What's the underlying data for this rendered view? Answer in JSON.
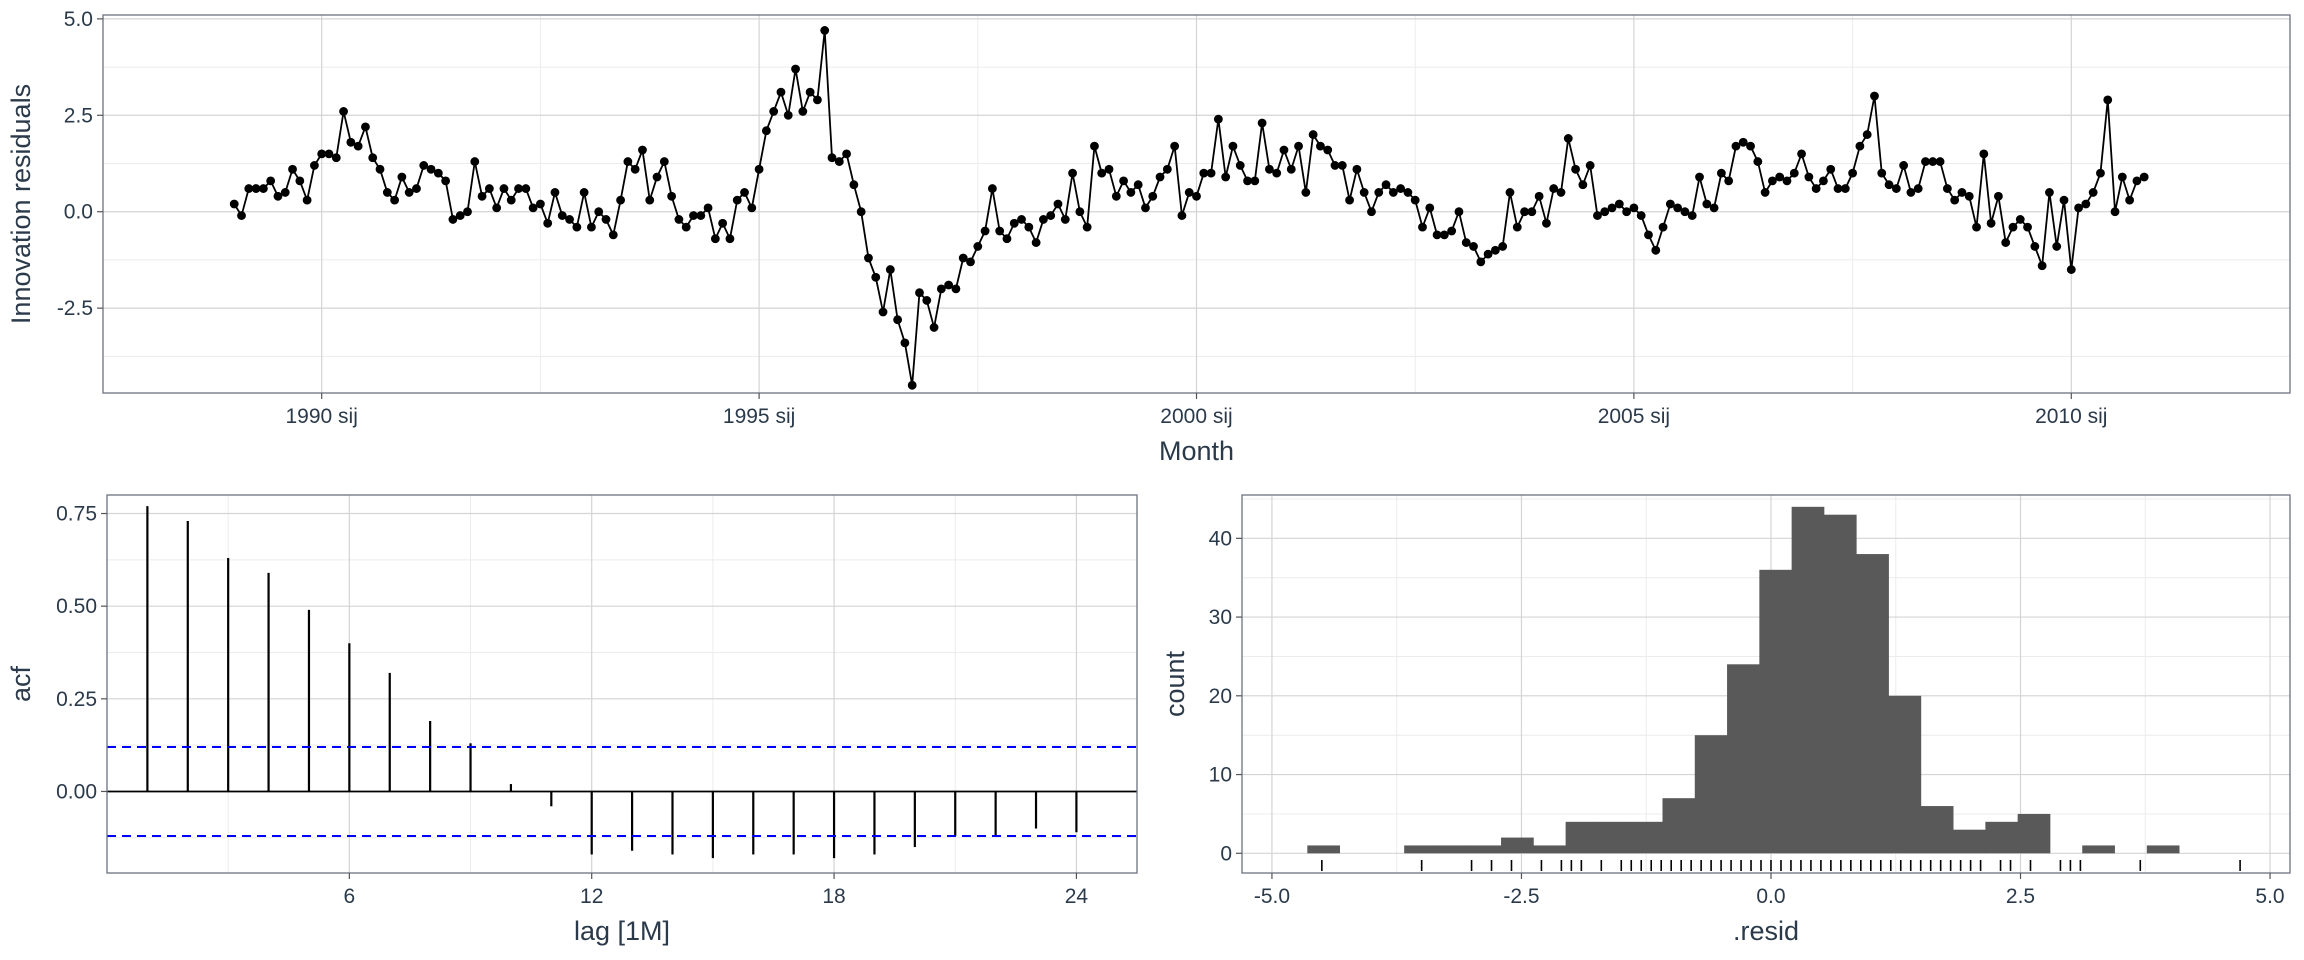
{
  "chart_data": [
    {
      "type": "line",
      "xlabel": "Month",
      "ylabel": "Innovation residuals",
      "xlim": [
        1987.5,
        2012.5
      ],
      "ylim": [
        -4.7,
        5.1
      ],
      "x_ticks": [
        1990,
        1995,
        2000,
        2005,
        2010
      ],
      "x_tick_labels": [
        "1990 sij",
        "1995 sij",
        "2000 sij",
        "2005 sij",
        "2010 sij"
      ],
      "y_ticks": [
        -2.5,
        0.0,
        2.5,
        5.0
      ],
      "y_tick_labels": [
        "-2.5",
        "0.0",
        "2.5",
        "5.0"
      ],
      "grid": true,
      "x_start": 1989.0,
      "x_step": 0.0833333,
      "values": [
        0.2,
        -0.1,
        0.6,
        0.6,
        0.6,
        0.8,
        0.4,
        0.5,
        1.1,
        0.8,
        0.3,
        1.2,
        1.5,
        1.5,
        1.4,
        2.6,
        1.8,
        1.7,
        2.2,
        1.4,
        1.1,
        0.5,
        0.3,
        0.9,
        0.5,
        0.6,
        1.2,
        1.1,
        1.0,
        0.8,
        -0.2,
        -0.1,
        0.0,
        1.3,
        0.4,
        0.6,
        0.1,
        0.6,
        0.3,
        0.6,
        0.6,
        0.1,
        0.2,
        -0.3,
        0.5,
        -0.1,
        -0.2,
        -0.4,
        0.5,
        -0.4,
        0.0,
        -0.2,
        -0.6,
        0.3,
        1.3,
        1.1,
        1.6,
        0.3,
        0.9,
        1.3,
        0.4,
        -0.2,
        -0.4,
        -0.1,
        -0.1,
        0.1,
        -0.7,
        -0.3,
        -0.7,
        0.3,
        0.5,
        0.1,
        1.1,
        2.1,
        2.6,
        3.1,
        2.5,
        3.7,
        2.6,
        3.1,
        2.9,
        4.7,
        1.4,
        1.3,
        1.5,
        0.7,
        0.0,
        -1.2,
        -1.7,
        -2.6,
        -1.5,
        -2.8,
        -3.4,
        -4.5,
        -2.1,
        -2.3,
        -3.0,
        -2.0,
        -1.9,
        -2.0,
        -1.2,
        -1.3,
        -0.9,
        -0.5,
        0.6,
        -0.5,
        -0.7,
        -0.3,
        -0.2,
        -0.4,
        -0.8,
        -0.2,
        -0.1,
        0.2,
        -0.2,
        1.0,
        0.0,
        -0.4,
        1.7,
        1.0,
        1.1,
        0.4,
        0.8,
        0.5,
        0.7,
        0.1,
        0.4,
        0.9,
        1.1,
        1.7,
        -0.1,
        0.5,
        0.4,
        1.0,
        1.0,
        2.4,
        0.9,
        1.7,
        1.2,
        0.8,
        0.8,
        2.3,
        1.1,
        1.0,
        1.6,
        1.1,
        1.7,
        0.5,
        2.0,
        1.7,
        1.6,
        1.2,
        1.2,
        0.3,
        1.1,
        0.5,
        0.0,
        0.5,
        0.7,
        0.5,
        0.6,
        0.5,
        0.3,
        -0.4,
        0.1,
        -0.6,
        -0.6,
        -0.5,
        0.0,
        -0.8,
        -0.9,
        -1.3,
        -1.1,
        -1.0,
        -0.9,
        0.5,
        -0.4,
        0.0,
        0.0,
        0.4,
        -0.3,
        0.6,
        0.5,
        1.9,
        1.1,
        0.7,
        1.2,
        -0.1,
        0.0,
        0.1,
        0.2,
        0.0,
        0.1,
        -0.1,
        -0.6,
        -1.0,
        -0.4,
        0.2,
        0.1,
        0.0,
        -0.1,
        0.9,
        0.2,
        0.1,
        1.0,
        0.8,
        1.7,
        1.8,
        1.7,
        1.3,
        0.5,
        0.8,
        0.9,
        0.8,
        1.0,
        1.5,
        0.9,
        0.6,
        0.8,
        1.1,
        0.6,
        0.6,
        1.0,
        1.7,
        2.0,
        3.0,
        1.0,
        0.7,
        0.6,
        1.2,
        0.5,
        0.6,
        1.3,
        1.3,
        1.3,
        0.6,
        0.3,
        0.5,
        0.4,
        -0.4,
        1.5,
        -0.3,
        0.4,
        -0.8,
        -0.4,
        -0.2,
        -0.4,
        -0.9,
        -1.4,
        0.5,
        -0.9,
        0.3,
        -1.5,
        0.1,
        0.2,
        0.5,
        1.0,
        2.9,
        0.0,
        0.9,
        0.3,
        0.8,
        0.9
      ]
    },
    {
      "type": "bar",
      "subtype": "acf",
      "xlabel": "lag [1M]",
      "ylabel": "acf",
      "xlim": [
        0,
        25.5
      ],
      "ylim": [
        -0.22,
        0.8
      ],
      "x_ticks": [
        6,
        12,
        18,
        24
      ],
      "x_tick_labels": [
        "6",
        "12",
        "18",
        "24"
      ],
      "y_ticks": [
        0.0,
        0.25,
        0.5,
        0.75
      ],
      "y_tick_labels": [
        "0.00",
        "0.25",
        "0.50",
        "0.75"
      ],
      "grid": true,
      "confidence_bound": 0.12,
      "bound_color": "#0000ff",
      "lags": [
        1,
        2,
        3,
        4,
        5,
        6,
        7,
        8,
        9,
        10,
        11,
        12,
        13,
        14,
        15,
        16,
        17,
        18,
        19,
        20,
        21,
        22,
        23,
        24
      ],
      "values": [
        0.77,
        0.73,
        0.63,
        0.59,
        0.49,
        0.4,
        0.32,
        0.19,
        0.13,
        0.02,
        -0.04,
        -0.17,
        -0.16,
        -0.17,
        -0.18,
        -0.17,
        -0.17,
        -0.18,
        -0.17,
        -0.15,
        -0.12,
        -0.12,
        -0.1,
        -0.11
      ]
    },
    {
      "type": "bar",
      "subtype": "histogram",
      "xlabel": ".resid",
      "ylabel": "count",
      "xlim": [
        -5.3,
        5.2
      ],
      "ylim": [
        -2.5,
        45.5
      ],
      "x_ticks": [
        -5.0,
        -2.5,
        0.0,
        2.5,
        5.0
      ],
      "x_tick_labels": [
        "-5.0",
        "-2.5",
        "0.0",
        "2.5",
        "5.0"
      ],
      "y_ticks": [
        0,
        10,
        20,
        30,
        40
      ],
      "y_tick_labels": [
        "0",
        "10",
        "20",
        "30",
        "40"
      ],
      "grid": true,
      "bar_color": "#595959",
      "bin_width": 0.3235,
      "bin_start": -4.6456,
      "counts": [
        1,
        0,
        0,
        1,
        1,
        1,
        2,
        1,
        4,
        4,
        4,
        7,
        15,
        24,
        36,
        44,
        43,
        38,
        20,
        6,
        3,
        4,
        5,
        0,
        1,
        0,
        1
      ],
      "rug_values": [
        -4.5,
        -3.5,
        -3.0,
        -2.8,
        -2.6,
        -2.3,
        -2.1,
        -2.0,
        -1.9,
        -1.7,
        -1.5,
        -1.4,
        -1.3,
        -1.2,
        -1.1,
        -1.0,
        -0.9,
        -0.8,
        -0.7,
        -0.6,
        -0.5,
        -0.4,
        -0.3,
        -0.2,
        -0.1,
        0.0,
        0.1,
        0.2,
        0.3,
        0.4,
        0.5,
        0.6,
        0.7,
        0.8,
        0.9,
        1.0,
        1.1,
        1.2,
        1.3,
        1.4,
        1.5,
        1.6,
        1.7,
        1.8,
        1.9,
        2.0,
        2.1,
        2.3,
        2.4,
        2.6,
        2.9,
        3.0,
        3.1,
        3.7,
        4.7
      ]
    }
  ]
}
